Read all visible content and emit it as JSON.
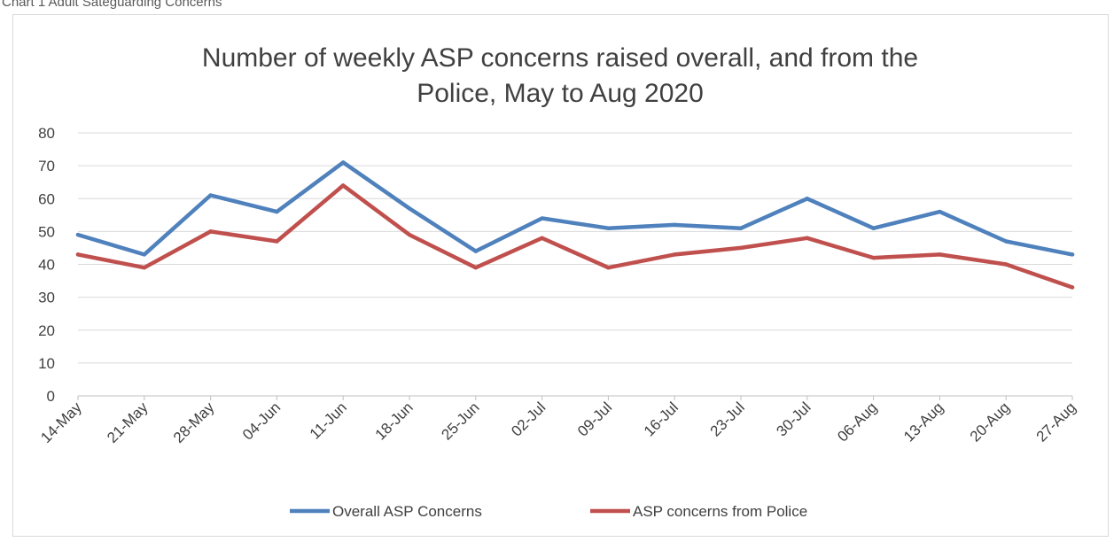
{
  "caption": "Chart 1 Adult Sateguarding Concerns",
  "chart_data": {
    "type": "line",
    "title_lines": [
      "Number of weekly ASP concerns raised overall, and from the",
      "Police, May to Aug 2020"
    ],
    "categories": [
      "14-May",
      "21-May",
      "28-May",
      "04-Jun",
      "11-Jun",
      "18-Jun",
      "25-Jun",
      "02-Jul",
      "09-Jul",
      "16-Jul",
      "23-Jul",
      "30-Jul",
      "06-Aug",
      "13-Aug",
      "20-Aug",
      "27-Aug"
    ],
    "series": [
      {
        "name": "Overall ASP Concerns",
        "color": "#4f81bd",
        "values": [
          49,
          43,
          61,
          56,
          71,
          57,
          44,
          54,
          51,
          52,
          51,
          60,
          51,
          56,
          47,
          43
        ]
      },
      {
        "name": "ASP concerns from Police",
        "color": "#c0504d",
        "values": [
          43,
          39,
          50,
          47,
          64,
          49,
          39,
          48,
          39,
          43,
          45,
          48,
          42,
          43,
          40,
          33
        ]
      }
    ],
    "ylim": [
      0,
      80
    ],
    "yticks": [
      0,
      10,
      20,
      30,
      40,
      50,
      60,
      70,
      80
    ],
    "grid": true,
    "legend_position": "bottom"
  }
}
